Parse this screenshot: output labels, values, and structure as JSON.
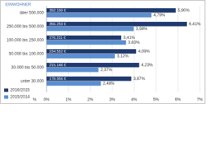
{
  "chart_data": {
    "type": "bar",
    "orientation": "horizontal",
    "header": "EINWOHNER",
    "xlabel": "%",
    "categories": [
      "über 500.000",
      "250.000 bis 500.000",
      "100.000 bis 250.000",
      "50.000 bis 100.000",
      "30.000 bis 50.000",
      "unter 30.000"
    ],
    "series": [
      {
        "name": "2016/2015",
        "color": "#1f3a6e",
        "values": [
          5.9,
          6.41,
          3.41,
          4.09,
          4.23,
          3.87
        ],
        "value_labels": [
          "5,90%",
          "6,41%",
          "3,41%",
          "4,09%",
          "4,23%",
          "3,87%"
        ],
        "annotations": [
          "392.190 €",
          "356.250 €",
          "276.211 €",
          "234.552 €",
          "215.146 €",
          "178.956 €"
        ]
      },
      {
        "name": "2015/2014",
        "color": "#5b8fd0",
        "values": [
          4.79,
          3.98,
          3.63,
          3.12,
          2.37,
          2.48
        ],
        "value_labels": [
          "4,79%",
          "3,98%",
          "3,63%",
          "3,12%",
          "2,37%",
          "2,48%"
        ]
      }
    ],
    "xlim": [
      0,
      7
    ],
    "xticks": [
      {
        "value": 0,
        "label": "0%"
      },
      {
        "value": 1,
        "label": "1%"
      },
      {
        "value": 2,
        "label": "2%"
      },
      {
        "value": 3,
        "label": "3%"
      },
      {
        "value": 4,
        "label": "4%"
      },
      {
        "value": 5,
        "label": "5%"
      },
      {
        "value": 6,
        "label": "6%"
      },
      {
        "value": 7,
        "label": "7%"
      }
    ],
    "grid": true,
    "legend": "lower left"
  }
}
